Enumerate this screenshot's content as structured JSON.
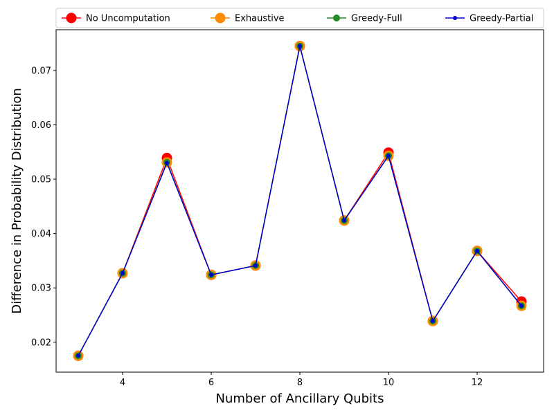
{
  "chart_data": {
    "type": "line",
    "title": "",
    "xlabel": "Number of Ancillary Qubits",
    "ylabel": "Difference in Probability Distribution",
    "x": [
      3,
      4,
      5,
      6,
      7,
      8,
      9,
      10,
      11,
      12,
      13
    ],
    "xlim": [
      2.5,
      13.5
    ],
    "ylim": [
      0.0145,
      0.0775
    ],
    "xticks": [
      4,
      6,
      8,
      10,
      12
    ],
    "yticks": [
      0.02,
      0.03,
      0.04,
      0.05,
      0.06,
      0.07
    ],
    "ytick_labels": [
      "0.02",
      "0.03",
      "0.04",
      "0.05",
      "0.06",
      "0.07"
    ],
    "grid": false,
    "legend_position": "top, spanning plot width, 4 columns",
    "series": [
      {
        "name": "No Uncomputation",
        "color": "#ff0000",
        "values": [
          0.0175,
          0.0327,
          0.0539,
          0.0324,
          0.0341,
          0.0745,
          0.0424,
          0.0549,
          0.0239,
          0.0368,
          0.0275
        ]
      },
      {
        "name": "Exhaustive",
        "color": "#ff8c00",
        "values": [
          0.0175,
          0.0327,
          0.0531,
          0.0324,
          0.0341,
          0.0745,
          0.0424,
          0.0543,
          0.0239,
          0.0368,
          0.0267
        ]
      },
      {
        "name": "Greedy-Full",
        "color": "#228b22",
        "values": [
          0.0175,
          0.0327,
          0.0531,
          0.0324,
          0.0341,
          0.0745,
          0.0424,
          0.0543,
          0.0239,
          0.0368,
          0.0267
        ]
      },
      {
        "name": "Greedy-Partial",
        "color": "#0000cd",
        "values": [
          0.0175,
          0.0327,
          0.053,
          0.0324,
          0.0341,
          0.0745,
          0.0424,
          0.0543,
          0.0239,
          0.0368,
          0.0267
        ]
      }
    ]
  }
}
